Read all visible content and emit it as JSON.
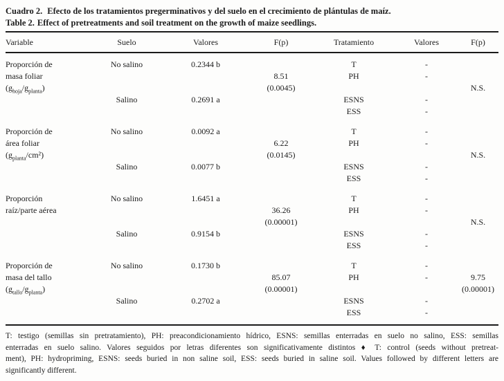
{
  "document": {
    "caption": {
      "es_label": "Cuadro 2.",
      "es_text": "Efecto de los tratamientos pregerminativos y del suelo en el crecimiento de plántulas de maíz.",
      "en_label": "Table 2.",
      "en_text": "Effect of pretreatments and soil treatment on the growth of maize seedlings."
    },
    "table": {
      "headers": [
        "Variable",
        "Suelo",
        "Valores",
        "F(p)",
        "Tratamiento",
        "Valores",
        "F(p)"
      ],
      "blocks": [
        {
          "variable_lines": [
            "Proporción de",
            "masa foliar"
          ],
          "variable_formula": "(g_{hoja}/g_{planta})",
          "soil_rows": [
            {
              "suelo": "No salino",
              "valor": "0.2344 b"
            },
            {
              "suelo": "Salino",
              "valor": "0.2691 a"
            }
          ],
          "f_soil": {
            "f": "8.51",
            "p": "(0.0045)"
          },
          "treatments": [
            {
              "name": "T",
              "valor": "-"
            },
            {
              "name": "PH",
              "valor": "-"
            },
            {
              "name": "ESNS",
              "valor": "-"
            },
            {
              "name": "ESS",
              "valor": "-"
            }
          ],
          "f_treatment": {
            "f": "",
            "p": "",
            "ns": "N.S."
          }
        },
        {
          "variable_lines": [
            "Proporción de",
            "área foliar"
          ],
          "variable_formula": "(g_{planta}/cm²)",
          "soil_rows": [
            {
              "suelo": "No salino",
              "valor": "0.0092 a"
            },
            {
              "suelo": "Salino",
              "valor": "0.0077 b"
            }
          ],
          "f_soil": {
            "f": "6.22",
            "p": "(0.0145)"
          },
          "treatments": [
            {
              "name": "T",
              "valor": "-"
            },
            {
              "name": "PH",
              "valor": "-"
            },
            {
              "name": "ESNS",
              "valor": "-"
            },
            {
              "name": "ESS",
              "valor": "-"
            }
          ],
          "f_treatment": {
            "f": "",
            "p": "",
            "ns": "N.S."
          }
        },
        {
          "variable_lines": [
            "Proporción",
            "raíz/parte aérea"
          ],
          "variable_formula": "",
          "soil_rows": [
            {
              "suelo": "No salino",
              "valor": "1.6451 a"
            },
            {
              "suelo": "Salino",
              "valor": "0.9154 b"
            }
          ],
          "f_soil": {
            "f": "36.26",
            "p": "(0.00001)"
          },
          "treatments": [
            {
              "name": "T",
              "valor": "-"
            },
            {
              "name": "PH",
              "valor": "-"
            },
            {
              "name": "ESNS",
              "valor": "-"
            },
            {
              "name": "ESS",
              "valor": "-"
            }
          ],
          "f_treatment": {
            "f": "",
            "p": "",
            "ns": "N.S."
          }
        },
        {
          "variable_lines": [
            "Proporción de",
            "masa del tallo"
          ],
          "variable_formula": "(g_{tallo}/g_{planta})",
          "soil_rows": [
            {
              "suelo": "No salino",
              "valor": "0.1730 b"
            },
            {
              "suelo": "Salino",
              "valor": "0.2702 a"
            }
          ],
          "f_soil": {
            "f": "85.07",
            "p": "(0.00001)"
          },
          "treatments": [
            {
              "name": "T",
              "valor": "-"
            },
            {
              "name": "PH",
              "valor": "-"
            },
            {
              "name": "ESNS",
              "valor": "-"
            },
            {
              "name": "ESS",
              "valor": "-"
            }
          ],
          "f_treatment": {
            "f": "9.75",
            "p": "(0.00001)",
            "ns": ""
          }
        }
      ]
    },
    "footnote": {
      "lines": [
        "T: testigo (semillas sin pretratamiento), PH: preacondicionamiento hídrico, ESNS: semillas enterradas en suelo no salino, ESS: semillas",
        "enterradas en suelo salino. Valores seguidos por letras diferentes son significativamente distintos ♦ T: control (seeds without pretreat-",
        "ment), PH: hydropriming, ESNS: seeds buried in non saline soil, ESS: seeds buried in saline soil. Values followed by different letters are",
        "significantly different."
      ]
    }
  }
}
